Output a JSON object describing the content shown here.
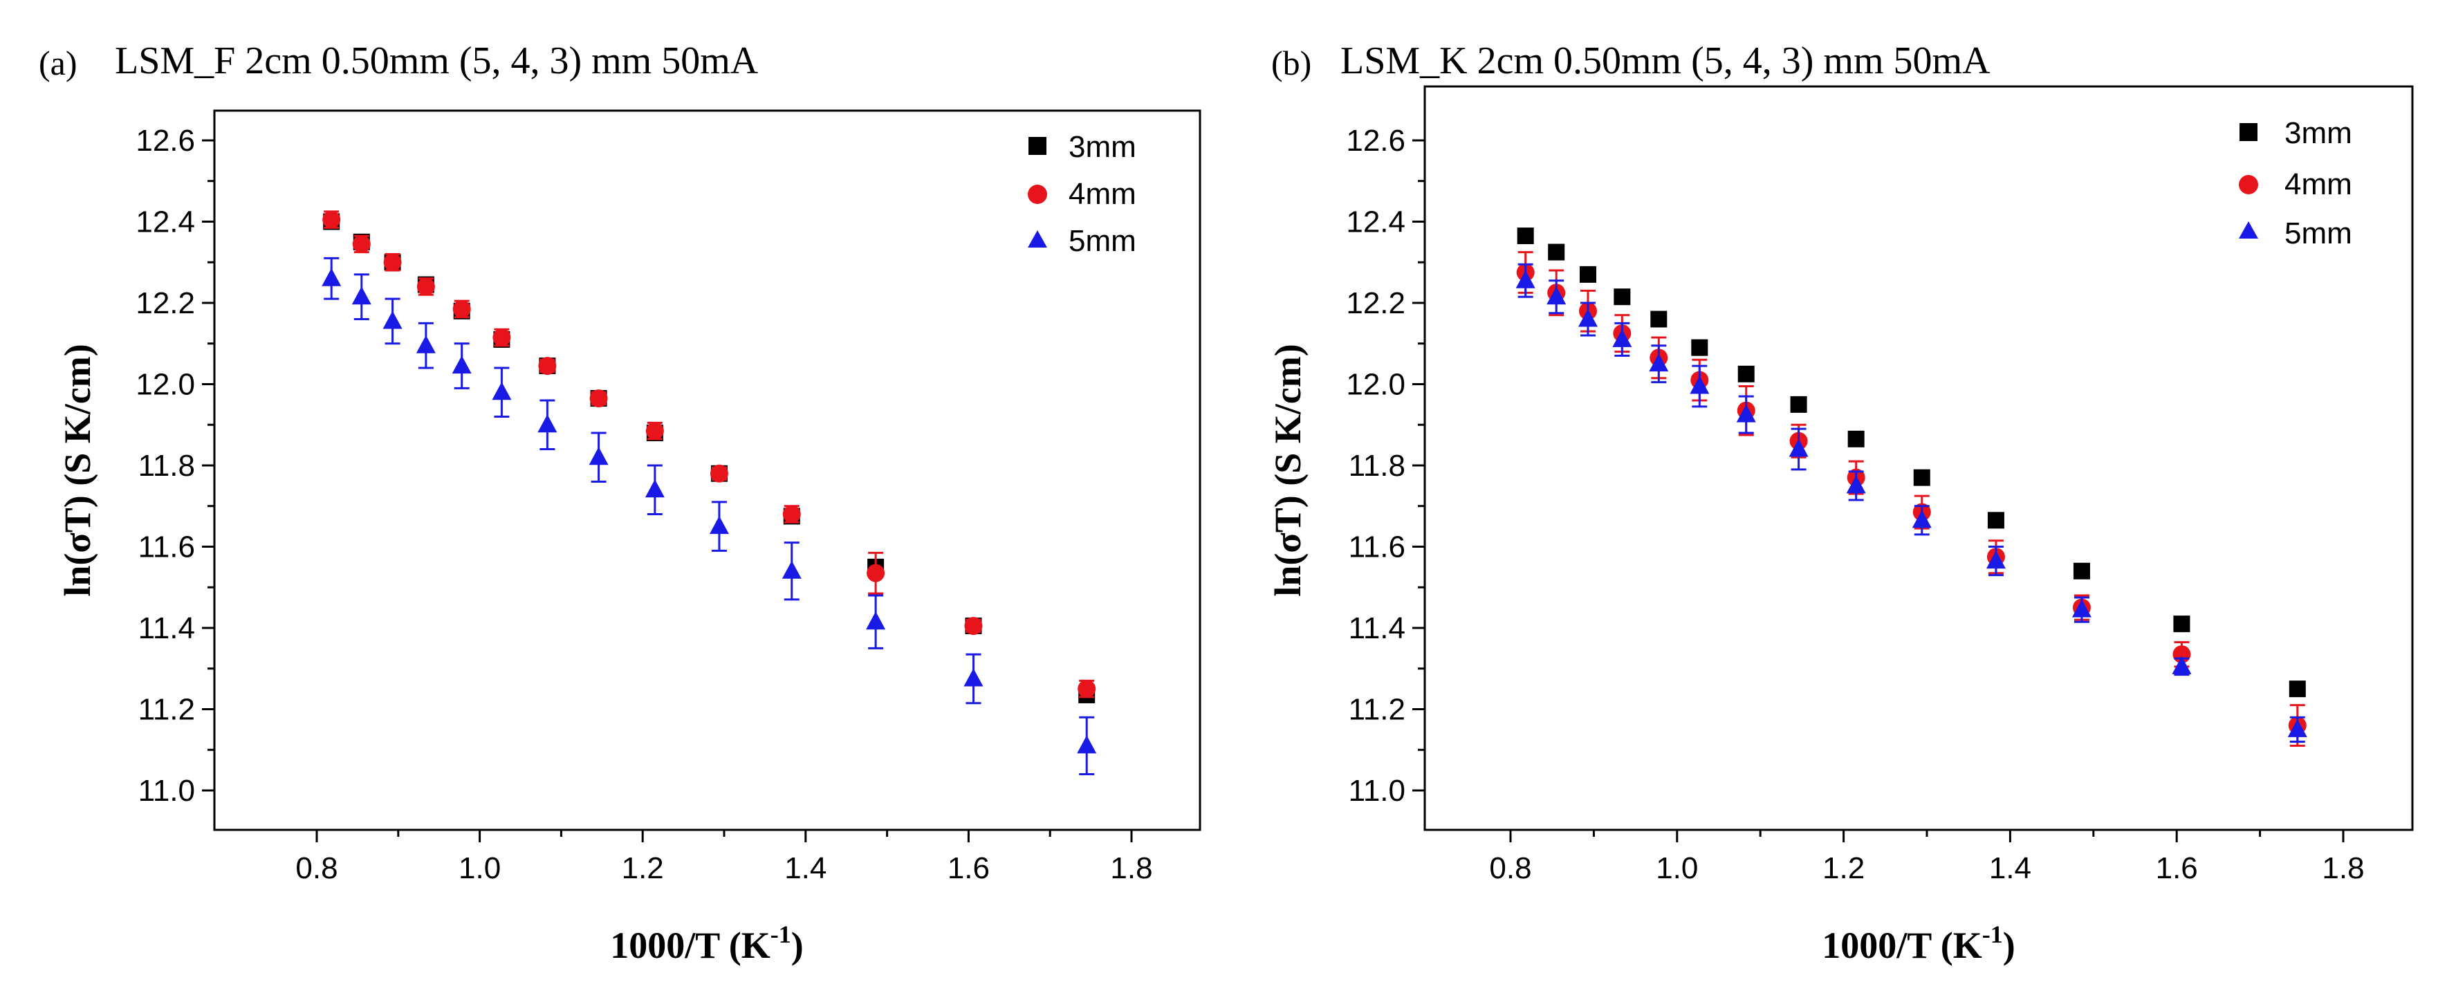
{
  "chart_data": [
    {
      "type": "scatter",
      "panel_label": "(a)",
      "title": "LSM_F 2cm 0.50mm (5, 4, 3) mm 50mA",
      "xlabel": "1000/T (K",
      "xlabel_sup": "-1",
      "xlabel_end": ")",
      "ylabel": "ln(σT) (S K/cm)",
      "xlim": [
        0.7,
        1.9
      ],
      "ylim": [
        10.9,
        12.75
      ],
      "xticks": [
        "0.8",
        "1.0",
        "1.2",
        "1.4",
        "1.6",
        "1.8"
      ],
      "yticks": [
        "11.0",
        "11.2",
        "11.4",
        "11.6",
        "11.8",
        "12.0",
        "12.2",
        "12.4",
        "12.6"
      ],
      "legend_position": "top-right",
      "x": [
        0.818,
        0.855,
        0.893,
        0.934,
        0.978,
        1.027,
        1.083,
        1.146,
        1.215,
        1.294,
        1.383,
        1.486,
        1.606,
        1.745
      ],
      "series": [
        {
          "name": "3mm",
          "marker": "square",
          "color": "#000000",
          "values": [
            12.4,
            12.35,
            12.3,
            12.245,
            12.18,
            12.11,
            12.045,
            11.965,
            11.88,
            11.78,
            11.675,
            11.55,
            11.405,
            11.235
          ],
          "errors": [
            0.01,
            0.01,
            0.01,
            0.01,
            0.01,
            0.01,
            0.01,
            0.01,
            0.01,
            0.01,
            0.01,
            0.01,
            0.01,
            0.01
          ]
        },
        {
          "name": "4mm",
          "marker": "circle",
          "color": "#e8141b",
          "values": [
            12.405,
            12.345,
            12.3,
            12.24,
            12.185,
            12.115,
            12.045,
            11.965,
            11.885,
            11.78,
            11.68,
            11.535,
            11.405,
            11.25
          ],
          "errors": [
            0.02,
            0.02,
            0.02,
            0.02,
            0.02,
            0.02,
            0.015,
            0.015,
            0.02,
            0.015,
            0.02,
            0.05,
            0.015,
            0.02
          ]
        },
        {
          "name": "5mm",
          "marker": "triangle",
          "color": "#1a1ae6",
          "values": [
            12.26,
            12.215,
            12.155,
            12.095,
            12.045,
            11.98,
            11.9,
            11.82,
            11.74,
            11.65,
            11.54,
            11.415,
            11.275,
            11.11
          ],
          "errors": [
            0.05,
            0.055,
            0.055,
            0.055,
            0.055,
            0.06,
            0.06,
            0.06,
            0.06,
            0.06,
            0.07,
            0.065,
            0.06,
            0.07
          ]
        }
      ]
    },
    {
      "type": "scatter",
      "panel_label": "(b)",
      "title": "LSM_K 2cm 0.50mm (5, 4, 3) mm 50mA",
      "xlabel": "1000/T (K",
      "xlabel_sup": "-1",
      "xlabel_end": ")",
      "ylabel": "ln(σT) (S K/cm)",
      "xlim": [
        0.7,
        1.9
      ],
      "ylim": [
        10.9,
        12.75
      ],
      "xticks": [
        "0.8",
        "1.0",
        "1.2",
        "1.4",
        "1.6",
        "1.8"
      ],
      "yticks": [
        "11.0",
        "11.2",
        "11.4",
        "11.6",
        "11.8",
        "12.0",
        "12.2",
        "12.4",
        "12.6"
      ],
      "legend_position": "top-right",
      "x": [
        0.818,
        0.855,
        0.893,
        0.934,
        0.978,
        1.027,
        1.083,
        1.146,
        1.215,
        1.294,
        1.383,
        1.486,
        1.606,
        1.745
      ],
      "series": [
        {
          "name": "3mm",
          "marker": "square",
          "color": "#000000",
          "values": [
            12.365,
            12.325,
            12.27,
            12.215,
            12.16,
            12.09,
            12.025,
            11.95,
            11.865,
            11.77,
            11.665,
            11.54,
            11.41,
            11.25
          ],
          "errors": [
            0.01,
            0.01,
            0.01,
            0.01,
            0.01,
            0.01,
            0.01,
            0.01,
            0.01,
            0.01,
            0.01,
            0.01,
            0.01,
            0.01
          ]
        },
        {
          "name": "4mm",
          "marker": "circle",
          "color": "#e8141b",
          "values": [
            12.275,
            12.225,
            12.18,
            12.125,
            12.065,
            12.01,
            11.935,
            11.86,
            11.77,
            11.685,
            11.575,
            11.45,
            11.335,
            11.16
          ],
          "errors": [
            0.05,
            0.055,
            0.05,
            0.045,
            0.05,
            0.05,
            0.06,
            0.04,
            0.04,
            0.04,
            0.04,
            0.03,
            0.03,
            0.05
          ]
        },
        {
          "name": "5mm",
          "marker": "triangle",
          "color": "#1a1ae6",
          "values": [
            12.255,
            12.215,
            12.16,
            12.11,
            12.05,
            11.995,
            11.925,
            11.84,
            11.75,
            11.665,
            11.565,
            11.445,
            11.305,
            11.15
          ],
          "errors": [
            0.04,
            0.04,
            0.04,
            0.04,
            0.045,
            0.05,
            0.045,
            0.05,
            0.035,
            0.035,
            0.035,
            0.03,
            0.02,
            0.03
          ]
        }
      ]
    }
  ]
}
